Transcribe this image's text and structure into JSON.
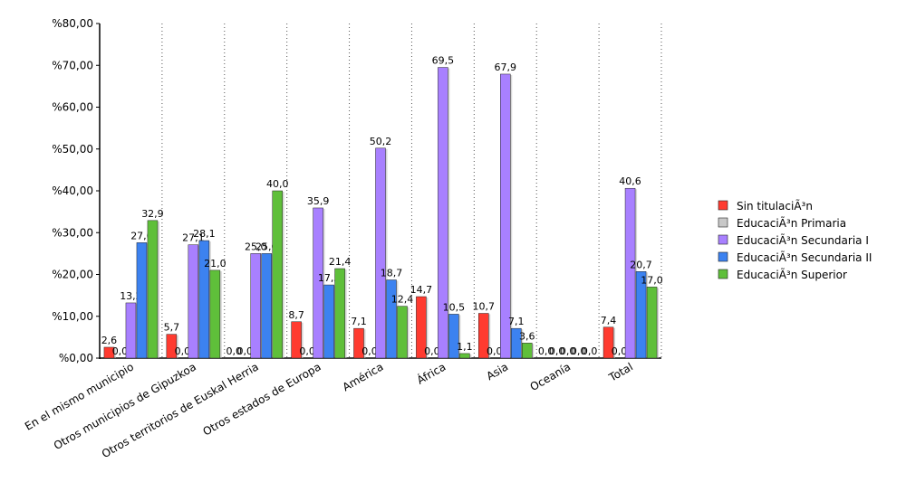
{
  "chart_data": {
    "type": "bar",
    "categories": [
      "En el mismo municipio",
      "Otros municipios de Gipuzkoa",
      "Otros territorios de Euskal Herria",
      "Otros estados de Europa",
      "América",
      "África",
      "Asia",
      "Oceanía",
      "Total"
    ],
    "series": [
      {
        "name": "Sin titulaciÃ³n",
        "color": "#ff3b30",
        "values": [
          2.6,
          5.7,
          0.0,
          8.7,
          7.1,
          14.7,
          10.7,
          0.0,
          7.4
        ],
        "labels": [
          "2,6",
          "5,7",
          "0,0",
          "8,7",
          "7,1",
          "14,7",
          "10,7",
          "0,0",
          "7,4"
        ]
      },
      {
        "name": "EducaciÃ³n Primaria",
        "color": "#c8c8c8",
        "values": [
          0.0,
          0.0,
          0.0,
          0.0,
          0.0,
          0.0,
          0.0,
          0.0,
          0.0
        ],
        "labels": [
          "0,0",
          "0,0",
          "0,0",
          "0,0",
          "0,0",
          "0,0",
          "0,0",
          "0,0",
          "0,0"
        ]
      },
      {
        "name": "EducaciÃ³n Secundaria I",
        "color": "#a880ff",
        "values": [
          13.2,
          27.1,
          25.0,
          35.9,
          50.2,
          69.5,
          67.9,
          0.0,
          40.6
        ],
        "labels": [
          "13,2",
          "27,1",
          "25,0",
          "35,9",
          "50,2",
          "69,5",
          "67,9",
          "0,0",
          "40,6"
        ]
      },
      {
        "name": "EducaciÃ³n Secundaria II",
        "color": "#3c82f0",
        "values": [
          27.6,
          28.1,
          25.0,
          17.5,
          18.7,
          10.5,
          7.1,
          0.0,
          20.7
        ],
        "labels": [
          "27,6",
          "28,1",
          "25,0",
          "17,5",
          "18,7",
          "10,5",
          "7,1",
          "0,0",
          "20,7"
        ]
      },
      {
        "name": "EducaciÃ³n Superior",
        "color": "#5fbf3a",
        "values": [
          32.9,
          21.0,
          40.0,
          21.4,
          12.4,
          1.1,
          3.6,
          0.0,
          17.0
        ],
        "labels": [
          "32,9",
          "21,0",
          "40,0",
          "21,4",
          "12,4",
          "1,1",
          "3,6",
          "0,0",
          "17,0"
        ]
      }
    ],
    "yticks": [
      "%0,00",
      "%10,00",
      "%20,00",
      "%30,00",
      "%40,00",
      "%50,00",
      "%60,00",
      "%70,00",
      "%80,00"
    ],
    "ylim": [
      0,
      80
    ],
    "ytick_step": 10,
    "grid": "vertical-dotted",
    "legend_position": "right"
  }
}
